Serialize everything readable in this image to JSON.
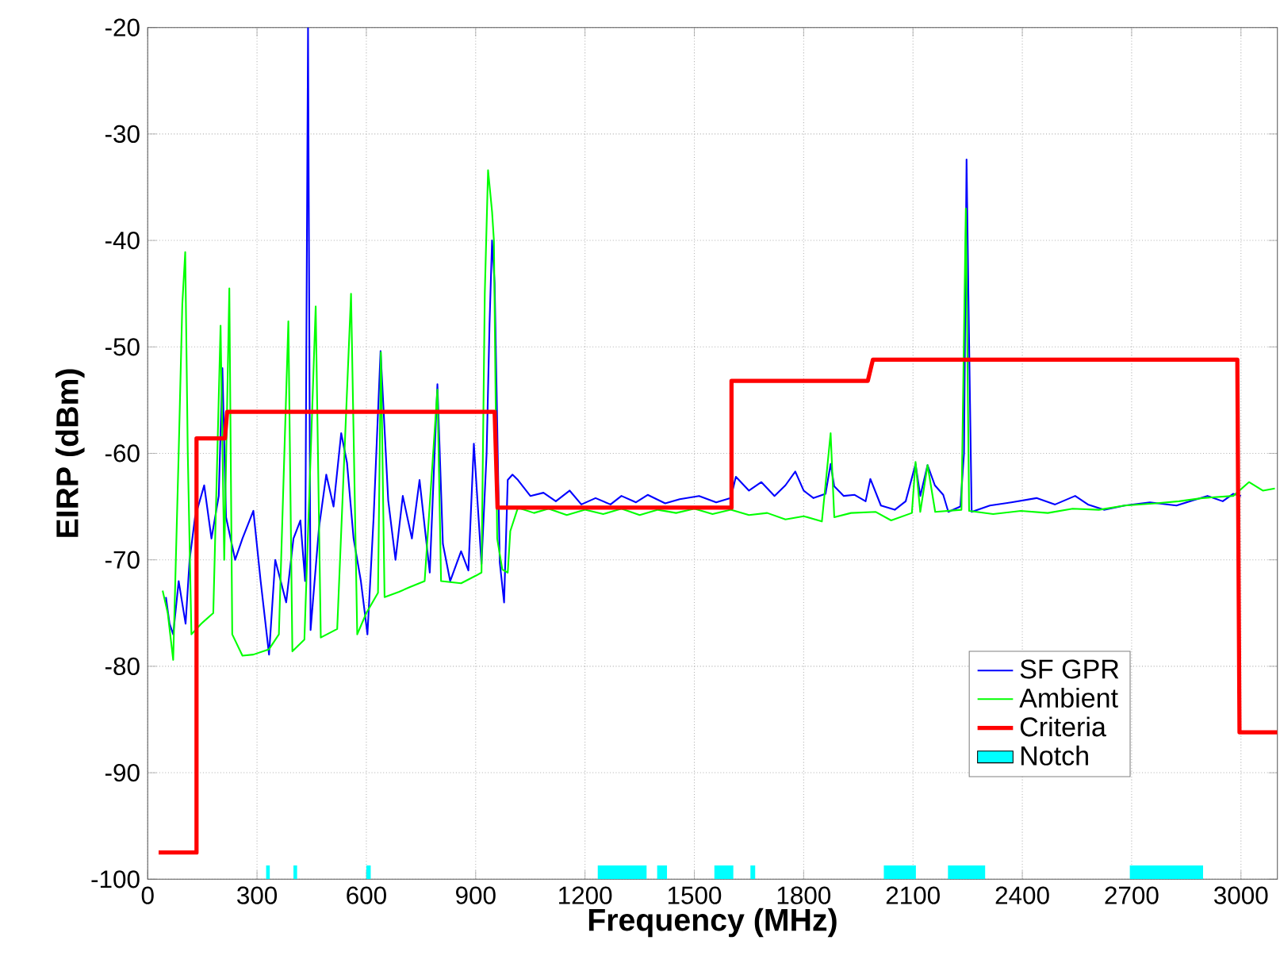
{
  "chart_data": {
    "type": "line",
    "xlabel": "Frequency (MHz)",
    "ylabel": "EIRP (dBm)",
    "xlim": [
      0,
      3100
    ],
    "ylim": [
      -100,
      -20
    ],
    "xticks": [
      0,
      300,
      600,
      900,
      1200,
      1500,
      1800,
      2100,
      2400,
      2700,
      3000
    ],
    "yticks": [
      -100,
      -90,
      -80,
      -70,
      -60,
      -50,
      -40,
      -30,
      -20
    ],
    "grid": true,
    "legend": "bottom right",
    "series": [
      {
        "name": "SF GPR",
        "color": "#0000ff",
        "x": [
          50,
          60,
          70,
          85,
          104,
          115,
          130,
          155,
          175,
          195,
          205,
          215,
          240,
          260,
          290,
          310,
          333,
          350,
          380,
          400,
          419,
          432,
          440,
          447,
          470,
          490,
          510,
          531,
          547,
          565,
          585,
          603,
          620,
          639,
          660,
          680,
          700,
          725,
          746,
          774,
          795,
          810,
          830,
          860,
          880,
          895,
          916,
          930,
          938,
          945,
          952,
          966,
          978,
          988,
          1001,
          1016,
          1050,
          1086,
          1120,
          1158,
          1190,
          1229,
          1270,
          1300,
          1340,
          1372,
          1420,
          1460,
          1513,
          1560,
          1600,
          1614,
          1650,
          1684,
          1720,
          1750,
          1777,
          1800,
          1827,
          1860,
          1874,
          1884,
          1910,
          1940,
          1970,
          1983,
          2012,
          2050,
          2080,
          2107,
          2120,
          2140,
          2160,
          2183,
          2197,
          2230,
          2240,
          2247,
          2252,
          2261,
          2311,
          2370,
          2439,
          2490,
          2545,
          2580,
          2624,
          2681,
          2750,
          2823,
          2870,
          2908,
          2950,
          2979,
          3000
        ],
        "values": [
          -73.5,
          -76,
          -77,
          -72,
          -76,
          -70,
          -66,
          -63,
          -68,
          -64,
          -52,
          -66,
          -70,
          -68,
          -65.4,
          -72,
          -78.9,
          -70,
          -74,
          -68,
          -66.3,
          -72,
          -20,
          -76.6,
          -67,
          -62,
          -65,
          -58.1,
          -60.9,
          -68,
          -72,
          -77,
          -66,
          -50.4,
          -64.4,
          -70,
          -64,
          -68,
          -62.5,
          -71.2,
          -53.5,
          -68.5,
          -72,
          -69.2,
          -71,
          -59.1,
          -70.4,
          -60,
          -47.9,
          -40,
          -44,
          -70.2,
          -74,
          -62.5,
          -62,
          -62.5,
          -64,
          -63.7,
          -64.5,
          -63.5,
          -64.8,
          -64.2,
          -64.8,
          -64,
          -64.6,
          -63.9,
          -64.7,
          -64.3,
          -64,
          -64.6,
          -64.2,
          -62.2,
          -63.5,
          -62.7,
          -64,
          -63,
          -61.7,
          -63.5,
          -64.2,
          -63.8,
          -61,
          -63.1,
          -64,
          -63.9,
          -64.5,
          -62.4,
          -64.9,
          -65.3,
          -64.5,
          -61,
          -64,
          -61.1,
          -63,
          -63.9,
          -65.5,
          -65,
          -60,
          -32.4,
          -45,
          -65.5,
          -64.9,
          -64.6,
          -64.2,
          -64.8,
          -64,
          -64.8,
          -65.3,
          -64.9,
          -64.6,
          -64.9,
          -64.4,
          -64,
          -64.5,
          -63.8,
          -64
        ]
      },
      {
        "name": "Ambient",
        "color": "#00ff00",
        "x": [
          41,
          55,
          70,
          85,
          95,
          103,
          110,
          120,
          147,
          180,
          200,
          210,
          224,
          232,
          260,
          290,
          333,
          360,
          386,
          397,
          430,
          461,
          475,
          520,
          558,
          575,
          600,
          632,
          640,
          650,
          690,
          717,
          760,
          795,
          805,
          860,
          900,
          916,
          925,
          934,
          945,
          950,
          959,
          973,
          988,
          995,
          1016,
          1060,
          1100,
          1150,
          1200,
          1250,
          1300,
          1350,
          1400,
          1450,
          1500,
          1550,
          1600,
          1650,
          1700,
          1750,
          1800,
          1850,
          1874,
          1884,
          1930,
          1998,
          2040,
          2097,
          2107,
          2120,
          2140,
          2161,
          2233,
          2245,
          2254,
          2320,
          2396,
          2470,
          2538,
          2610,
          2681,
          2766,
          2830,
          2894,
          2979,
          3022,
          3060,
          3093
        ],
        "values": [
          -72.9,
          -75,
          -79.4,
          -60,
          -46,
          -41.1,
          -60,
          -77,
          -76,
          -75,
          -48,
          -70,
          -44.5,
          -77,
          -79,
          -78.9,
          -78.4,
          -77,
          -47.6,
          -78.6,
          -77.5,
          -46.2,
          -77.3,
          -76.5,
          -45,
          -77,
          -75,
          -73.1,
          -50.5,
          -73.5,
          -73,
          -72.6,
          -72,
          -54,
          -72,
          -72.2,
          -71.5,
          -71.2,
          -45,
          -33.4,
          -37.3,
          -40,
          -68,
          -70.9,
          -71.2,
          -67.3,
          -65.1,
          -65.6,
          -65.2,
          -65.8,
          -65.3,
          -65.7,
          -65.2,
          -65.8,
          -65.3,
          -65.6,
          -65.2,
          -65.7,
          -65.3,
          -65.8,
          -65.6,
          -66.2,
          -65.9,
          -66.4,
          -58.1,
          -66,
          -65.6,
          -65.5,
          -66.3,
          -65.6,
          -60.8,
          -65.5,
          -61.1,
          -65.5,
          -65.3,
          -37,
          -65.4,
          -65.7,
          -65.4,
          -65.6,
          -65.2,
          -65.3,
          -64.9,
          -64.7,
          -64.5,
          -64.2,
          -64,
          -62.7,
          -63.5,
          -63.3
        ]
      },
      {
        "name": "Criteria",
        "color": "#ff0000",
        "x": [
          30,
          134,
          134,
          212,
          218,
          952,
          960,
          1602,
          1602,
          1976,
          1990,
          2990,
          2996,
          3100
        ],
        "values": [
          -97.5,
          -97.5,
          -58.6,
          -58.6,
          -56.1,
          -56.1,
          -65.1,
          -65.1,
          -53.2,
          -53.2,
          -51.2,
          -51.2,
          -86.2,
          -86.2
        ]
      },
      {
        "name": "Notch",
        "type": "area",
        "color": "#00ffff",
        "x": [
          325,
          325,
          335,
          335,
          400,
          400,
          410,
          410,
          600,
          600,
          612,
          612,
          1235,
          1235,
          1369,
          1369,
          1398,
          1398,
          1425,
          1425,
          1555,
          1555,
          1607,
          1607,
          1654,
          1654,
          1667,
          1667,
          2020,
          2020,
          2108,
          2108,
          2196,
          2196,
          2298,
          2298,
          2695,
          2695,
          2896,
          2896
        ],
        "values": [
          -100,
          -98.7,
          -98.7,
          -100,
          -100,
          -98.7,
          -98.7,
          -100,
          -100,
          -98.7,
          -98.7,
          -100,
          -100,
          -98.7,
          -98.7,
          -100,
          -100,
          -98.7,
          -98.7,
          -100,
          -100,
          -98.7,
          -98.7,
          -100,
          -100,
          -98.7,
          -98.7,
          -100,
          -100,
          -98.7,
          -98.7,
          -100,
          -100,
          -98.7,
          -98.7,
          -100,
          -100,
          -98.7,
          -98.7,
          -100
        ]
      }
    ]
  }
}
